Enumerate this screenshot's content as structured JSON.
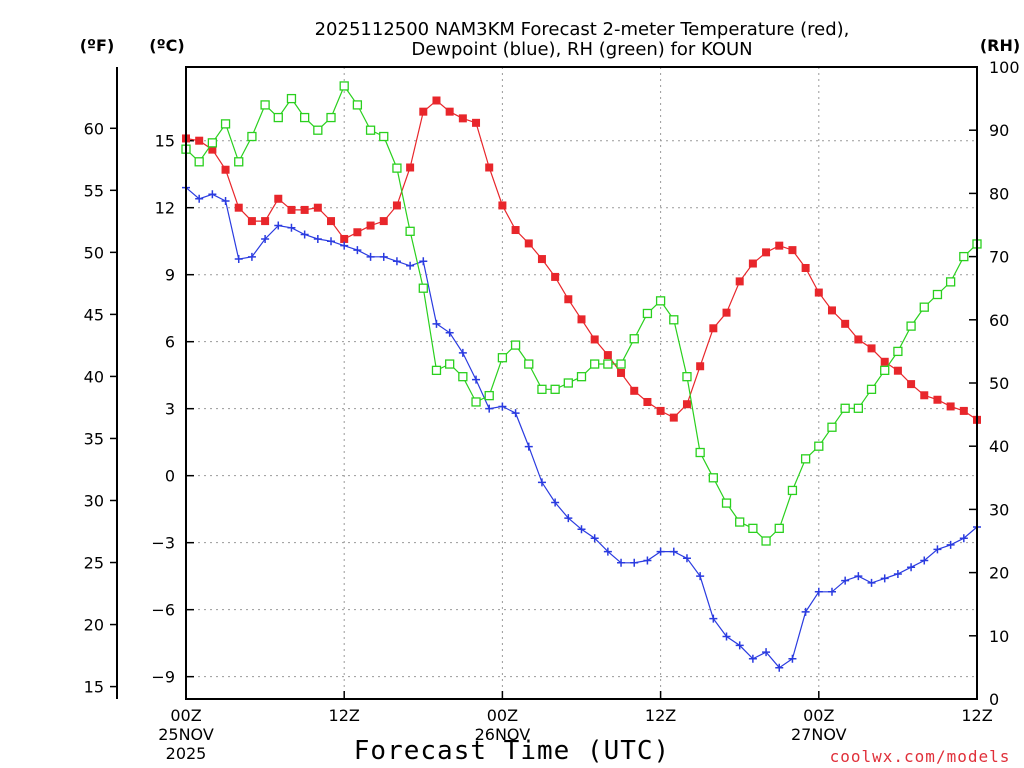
{
  "chart_data": {
    "type": "line",
    "title_line1": "2025112500 NAM3KM Forecast 2-meter Temperature (red),",
    "title_line2": "Dewpoint (blue), RH (green) for KOUN",
    "xlabel": "Forecast Time (UTC)",
    "credit": "coolwx.com/models",
    "unit_f": "(ºF)",
    "unit_c": "(ºC)",
    "unit_rh": "(RH)",
    "forecast_hours_range": [
      0,
      60
    ],
    "c_range": [
      -10,
      18.3
    ],
    "rh_range": [
      0,
      100
    ],
    "grid": true,
    "x_ticks": [
      {
        "hour": 0,
        "label": "00Z",
        "date": "25NOV",
        "year": "2025"
      },
      {
        "hour": 12,
        "label": "12Z"
      },
      {
        "hour": 24,
        "label": "00Z",
        "date": "26NOV"
      },
      {
        "hour": 36,
        "label": "12Z"
      },
      {
        "hour": 48,
        "label": "00Z",
        "date": "27NOV"
      },
      {
        "hour": 60,
        "label": "12Z"
      }
    ],
    "c_ticks": [
      {
        "value": -9,
        "label": "−9"
      },
      {
        "value": -6,
        "label": "−6"
      },
      {
        "value": -3,
        "label": "−3"
      },
      {
        "value": 0,
        "label": "0"
      },
      {
        "value": 3,
        "label": "3"
      },
      {
        "value": 6,
        "label": "6"
      },
      {
        "value": 9,
        "label": "9"
      },
      {
        "value": 12,
        "label": "12"
      },
      {
        "value": 15,
        "label": "15"
      }
    ],
    "f_ticks": [
      {
        "value": 15,
        "label": "15"
      },
      {
        "value": 20,
        "label": "20"
      },
      {
        "value": 25,
        "label": "25"
      },
      {
        "value": 30,
        "label": "30"
      },
      {
        "value": 35,
        "label": "35"
      },
      {
        "value": 40,
        "label": "40"
      },
      {
        "value": 45,
        "label": "45"
      },
      {
        "value": 50,
        "label": "50"
      },
      {
        "value": 55,
        "label": "55"
      },
      {
        "value": 60,
        "label": "60"
      }
    ],
    "rh_ticks": [
      {
        "value": 0,
        "label": "0"
      },
      {
        "value": 10,
        "label": "10"
      },
      {
        "value": 20,
        "label": "20"
      },
      {
        "value": 30,
        "label": "30"
      },
      {
        "value": 40,
        "label": "40"
      },
      {
        "value": 50,
        "label": "50"
      },
      {
        "value": 60,
        "label": "60"
      },
      {
        "value": 70,
        "label": "70"
      },
      {
        "value": 80,
        "label": "80"
      },
      {
        "value": 90,
        "label": "90"
      },
      {
        "value": 100,
        "label": "100"
      }
    ],
    "series": [
      {
        "name": "2-meter Temperature",
        "color": "#e8262b",
        "marker": "filled-square",
        "axis": "c",
        "hours": [
          0,
          1,
          2,
          3,
          4,
          5,
          6,
          7,
          8,
          9,
          10,
          11,
          12,
          13,
          14,
          15,
          16,
          17,
          18,
          19,
          20,
          21,
          22,
          23,
          24,
          25,
          26,
          27,
          28,
          29,
          30,
          31,
          32,
          33,
          34,
          35,
          36,
          37,
          38,
          39,
          40,
          41,
          42,
          43,
          44,
          45,
          46,
          47,
          48,
          49,
          50,
          51,
          52,
          53,
          54,
          55,
          56,
          57,
          58,
          59,
          60
        ],
        "values": [
          15.1,
          15.0,
          14.6,
          13.7,
          12.0,
          11.4,
          11.4,
          12.4,
          11.9,
          11.9,
          12.0,
          11.4,
          10.6,
          10.9,
          11.2,
          11.4,
          12.1,
          13.8,
          16.3,
          16.8,
          16.3,
          16.0,
          15.8,
          13.8,
          12.1,
          11.0,
          10.4,
          9.7,
          8.9,
          7.9,
          7.0,
          6.1,
          5.4,
          4.6,
          3.8,
          3.3,
          2.9,
          2.6,
          3.2,
          4.9,
          6.6,
          7.3,
          8.7,
          9.5,
          10.0,
          10.3,
          10.1,
          9.3,
          8.2,
          7.4,
          6.8,
          6.1,
          5.7,
          5.1,
          4.7,
          4.1,
          3.6,
          3.4,
          3.1,
          2.9,
          2.5
        ]
      },
      {
        "name": "Dewpoint",
        "color": "#2a3be0",
        "marker": "plus",
        "axis": "c",
        "hours": [
          0,
          1,
          2,
          3,
          4,
          5,
          6,
          7,
          8,
          9,
          10,
          11,
          12,
          13,
          14,
          15,
          16,
          17,
          18,
          19,
          20,
          21,
          22,
          23,
          24,
          25,
          26,
          27,
          28,
          29,
          30,
          31,
          32,
          33,
          34,
          35,
          36,
          37,
          38,
          39,
          40,
          41,
          42,
          43,
          44,
          45,
          46,
          47,
          48,
          49,
          50,
          51,
          52,
          53,
          54,
          55,
          56,
          57,
          58,
          59,
          60
        ],
        "values": [
          12.9,
          12.4,
          12.6,
          12.3,
          9.7,
          9.8,
          10.6,
          11.2,
          11.1,
          10.8,
          10.6,
          10.5,
          10.3,
          10.1,
          9.8,
          9.8,
          9.6,
          9.4,
          9.6,
          6.8,
          6.4,
          5.5,
          4.3,
          3.0,
          3.1,
          2.8,
          1.3,
          -0.3,
          -1.2,
          -1.9,
          -2.4,
          -2.8,
          -3.4,
          -3.9,
          -3.9,
          -3.8,
          -3.4,
          -3.4,
          -3.7,
          -4.5,
          -6.4,
          -7.2,
          -7.6,
          -8.2,
          -7.9,
          -8.6,
          -8.2,
          -6.1,
          -5.2,
          -5.2,
          -4.7,
          -4.5,
          -4.8,
          -4.6,
          -4.4,
          -4.1,
          -3.8,
          -3.3,
          -3.1,
          -2.8,
          -2.3
        ]
      },
      {
        "name": "RH",
        "color": "#2ad01e",
        "marker": "open-square",
        "axis": "rh",
        "hours": [
          0,
          1,
          2,
          3,
          4,
          5,
          6,
          7,
          8,
          9,
          10,
          11,
          12,
          13,
          14,
          15,
          16,
          17,
          18,
          19,
          20,
          21,
          22,
          23,
          24,
          25,
          26,
          27,
          28,
          29,
          30,
          31,
          32,
          33,
          34,
          35,
          36,
          37,
          38,
          39,
          40,
          41,
          42,
          43,
          44,
          45,
          46,
          47,
          48,
          49,
          50,
          51,
          52,
          53,
          54,
          55,
          56,
          57,
          58,
          59,
          60
        ],
        "values": [
          87,
          85,
          88,
          91,
          85,
          89,
          94,
          92,
          95,
          92,
          90,
          92,
          97,
          94,
          90,
          89,
          84,
          74,
          65,
          52,
          53,
          51,
          47,
          48,
          54,
          56,
          53,
          49,
          49,
          50,
          51,
          53,
          53,
          53,
          57,
          61,
          63,
          60,
          51,
          39,
          35,
          31,
          28,
          27,
          25,
          27,
          33,
          38,
          40,
          43,
          46,
          46,
          49,
          52,
          55,
          59,
          62,
          64,
          66,
          70,
          72
        ]
      }
    ]
  }
}
